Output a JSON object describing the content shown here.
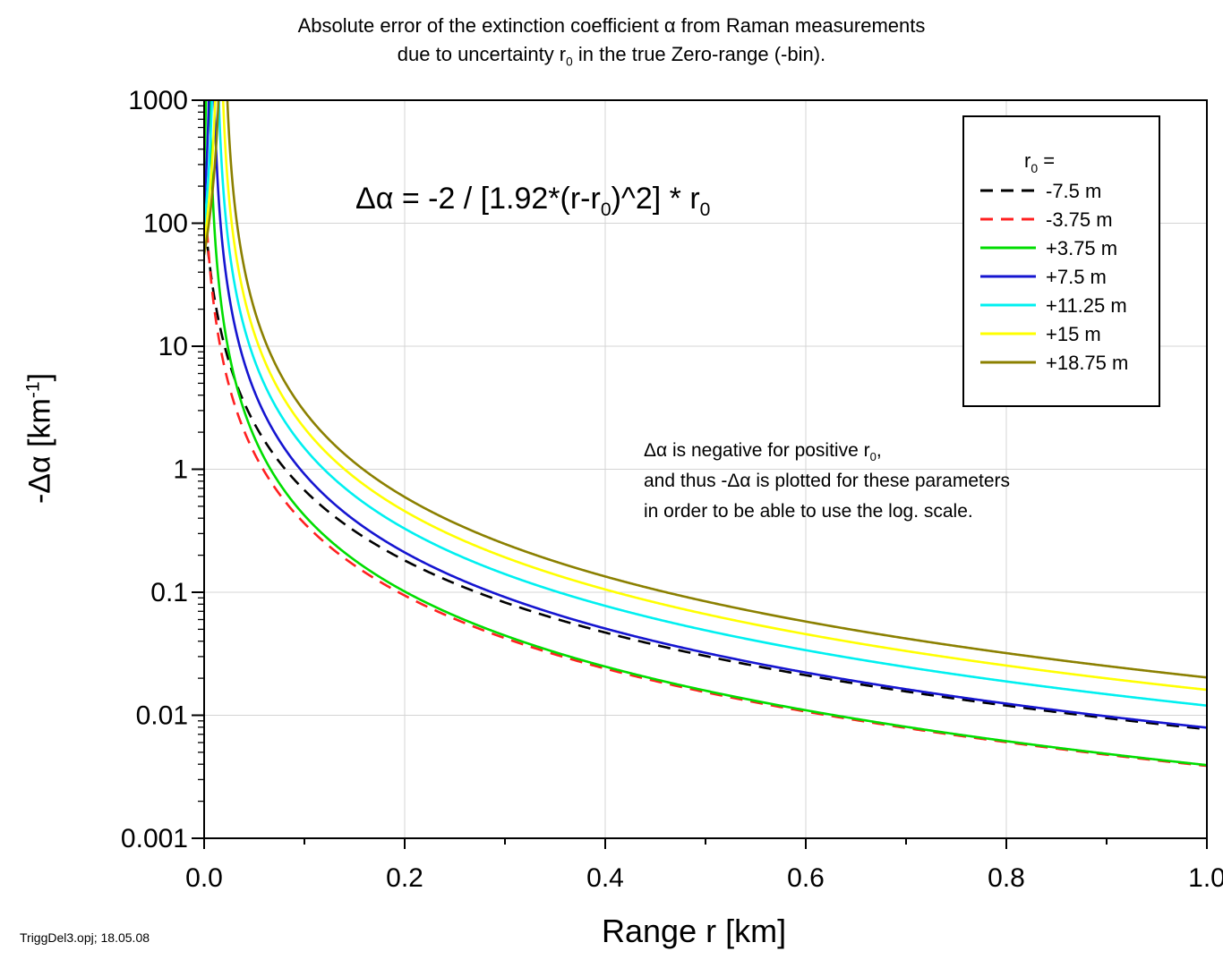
{
  "chart_data": {
    "type": "line",
    "title_line1": "Absolute error of the extinction coefficient α from Raman measurements",
    "title_line2_pre": "due to uncertainty r",
    "title_line2_sub": "0",
    "title_line2_post": " in the true Zero-range (-bin).",
    "xlabel": "Range r [km]",
    "ylabel_pre": "-Δα   [km",
    "ylabel_sup": "-1",
    "ylabel_post": "]",
    "xlim": [
      0.0,
      1.0
    ],
    "ylim": [
      0.001,
      1000
    ],
    "yscale": "log",
    "grid": true,
    "x_ticks": [
      0.0,
      0.2,
      0.4,
      0.6,
      0.8,
      1.0
    ],
    "x_tick_labels": [
      "0.0",
      "0.2",
      "0.4",
      "0.6",
      "0.8",
      "1.0"
    ],
    "y_ticks": [
      0.001,
      0.01,
      0.1,
      1,
      10,
      100,
      1000
    ],
    "y_tick_labels": [
      "0.001",
      "0.01",
      "0.1",
      "1",
      "10",
      "100",
      "1000"
    ],
    "formula": {
      "lhs": "Δα = -2  /  [1.92*(r-r",
      "sub1": "0",
      "mid": ")^2]  *  r",
      "sub2": "0"
    },
    "legend": {
      "title_pre": "r",
      "title_sub": "0",
      "title_post": " =",
      "placement": "top-right"
    },
    "series": [
      {
        "name": "-7.5 m",
        "r0_km": -0.0075,
        "color": "#000000",
        "dash": true
      },
      {
        "name": "-3.75 m",
        "r0_km": -0.00375,
        "color": "#ff2020",
        "dash": true
      },
      {
        "name": "+3.75 m",
        "r0_km": 0.00375,
        "color": "#00dd00",
        "dash": false
      },
      {
        "name": "+7.5 m",
        "r0_km": 0.0075,
        "color": "#1515d0",
        "dash": false
      },
      {
        "name": "+11.25 m",
        "r0_km": 0.01125,
        "color": "#00f0f0",
        "dash": false
      },
      {
        "name": "+15 m",
        "r0_km": 0.015,
        "color": "#ffff00",
        "dash": false
      },
      {
        "name": "+18.75 m",
        "r0_km": 0.01875,
        "color": "#8b8000",
        "dash": false
      }
    ],
    "annotation": {
      "line1_pre": "Δα is negative for positive r",
      "line1_sub": "0",
      "line1_post": ",",
      "line2": "and thus -Δα is plotted for these parameters",
      "line3": "in order to be able to use the log. scale."
    }
  },
  "footnote": "TriggDel3.opj; 18.05.08"
}
